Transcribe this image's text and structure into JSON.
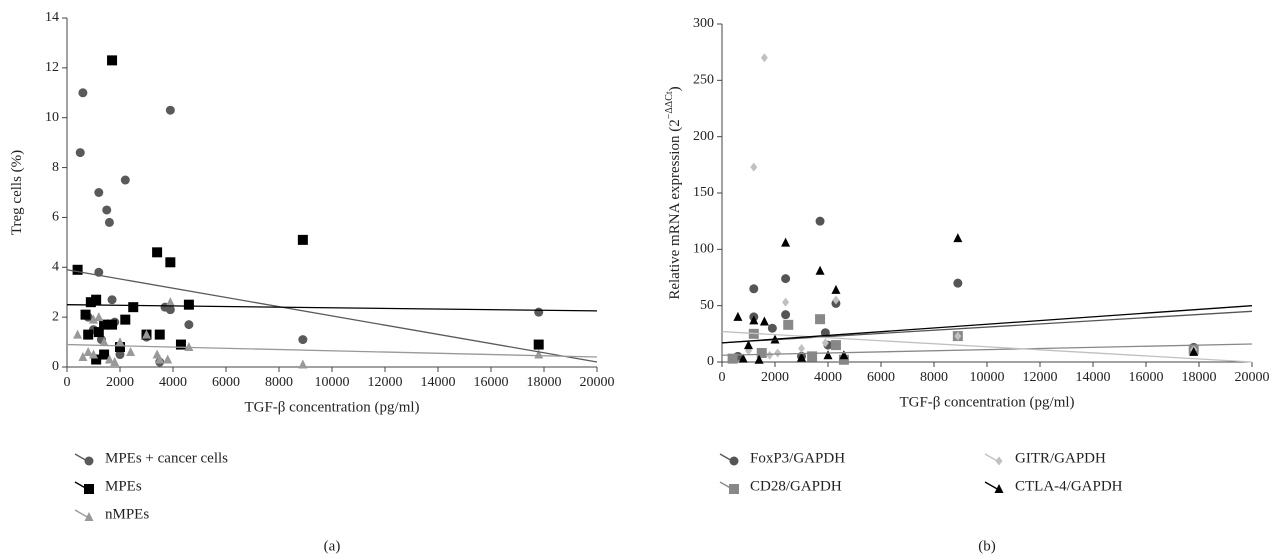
{
  "chart_data": [
    {
      "type": "scatter",
      "caption": "(a)",
      "xlabel": "TGF-β concentration (pg/ml)",
      "ylabel": "Treg cells (%)",
      "xlim": [
        0,
        20000
      ],
      "xticks": [
        0,
        2000,
        4000,
        6000,
        8000,
        10000,
        12000,
        14000,
        16000,
        18000,
        20000
      ],
      "ylim": [
        0,
        14
      ],
      "yticks": [
        0,
        2,
        4,
        6,
        8,
        10,
        12,
        14
      ],
      "series": [
        {
          "name": "MPEs + cancer cells",
          "color": "#5a5a5a",
          "marker": "circle",
          "x": [
            500,
            600,
            1200,
            1200,
            1500,
            1600,
            2200,
            3900,
            1700,
            3700,
            3900,
            4600,
            3000,
            2000,
            1000,
            800,
            1300,
            3500,
            8900,
            17800,
            4300,
            1800
          ],
          "y": [
            8.6,
            11,
            7,
            3.8,
            6.3,
            5.8,
            7.5,
            10.3,
            2.7,
            2.4,
            2.3,
            1.7,
            1.2,
            0.5,
            1.5,
            2,
            1.1,
            0.2,
            1.1,
            2.2,
            0.9,
            1.8
          ],
          "trend": {
            "x": [
              0,
              20000
            ],
            "y": [
              3.9,
              0.2
            ]
          }
        },
        {
          "name": "MPEs",
          "color": "#000000",
          "marker": "square",
          "x": [
            400,
            700,
            900,
            1100,
            800,
            1200,
            1400,
            1700,
            1700,
            2200,
            2500,
            3400,
            3900,
            3500,
            4600,
            4300,
            1100,
            1400,
            2000,
            3000,
            8900,
            17800
          ],
          "y": [
            3.9,
            2.1,
            2.6,
            2.7,
            1.3,
            1.4,
            1.7,
            1.7,
            12.3,
            1.9,
            2.4,
            4.6,
            4.2,
            1.3,
            2.5,
            0.9,
            0.3,
            0.5,
            0.8,
            1.3,
            5.1,
            0.9
          ],
          "trend": {
            "x": [
              0,
              20000
            ],
            "y": [
              2.5,
              2.25
            ]
          }
        },
        {
          "name": "nMPEs",
          "color": "#999999",
          "marker": "triangle",
          "x": [
            400,
            600,
            800,
            1000,
            1200,
            1400,
            1600,
            1800,
            2000,
            2400,
            3000,
            3400,
            3500,
            3800,
            3900,
            4600,
            8900,
            17800,
            1000
          ],
          "y": [
            1.3,
            0.4,
            0.6,
            1.9,
            2.0,
            1.0,
            0.3,
            0.2,
            1.0,
            0.6,
            1.3,
            0.5,
            0.3,
            0.3,
            2.6,
            0.8,
            0.1,
            0.5,
            0.5
          ],
          "trend": {
            "x": [
              0,
              20000
            ],
            "y": [
              0.9,
              0.4
            ]
          }
        }
      ]
    },
    {
      "type": "scatter",
      "caption": "(b)",
      "xlabel": "TGF-β concentration (pg/ml)",
      "ylabel": "Relative mRNA expression (2",
      "ylabel_sup": "−ΔΔCt",
      "ylabel_end": ")",
      "xlim": [
        0,
        20000
      ],
      "xticks": [
        0,
        2000,
        4000,
        6000,
        8000,
        10000,
        12000,
        14000,
        16000,
        18000,
        20000
      ],
      "ylim": [
        0,
        300
      ],
      "yticks": [
        0,
        50,
        100,
        150,
        200,
        250,
        300
      ],
      "series": [
        {
          "name": "FoxP3/GAPDH",
          "color": "#555555",
          "marker": "circle",
          "x": [
            1200,
            1200,
            2400,
            2400,
            1900,
            3700,
            3900,
            4300,
            8900,
            17800,
            3000,
            600,
            4000
          ],
          "y": [
            65,
            40,
            74,
            42,
            30,
            125,
            26,
            52,
            70,
            13,
            5,
            5,
            15
          ],
          "trend": {
            "x": [
              0,
              20000
            ],
            "y": [
              17,
              45
            ]
          }
        },
        {
          "name": "CD28/GAPDH",
          "color": "#888888",
          "marker": "square",
          "x": [
            1200,
            3700,
            2500,
            4300,
            8900,
            17800,
            400,
            1500,
            3400,
            4600
          ],
          "y": [
            25,
            38,
            33,
            15,
            23,
            11,
            3,
            8,
            5,
            2
          ],
          "trend": {
            "x": [
              0,
              20000
            ],
            "y": [
              6,
              16
            ]
          }
        },
        {
          "name": "GITR/GAPDH",
          "color": "#c0c0c0",
          "marker": "diamond",
          "x": [
            1200,
            1600,
            2400,
            4300,
            3900,
            8900,
            17800,
            1000,
            2100,
            3000,
            1800
          ],
          "y": [
            173,
            270,
            53,
            55,
            17,
            23,
            11,
            10,
            8,
            12,
            6
          ],
          "trend": {
            "x": [
              0,
              20000
            ],
            "y": [
              27,
              0
            ]
          }
        },
        {
          "name": "CTLA-4/GAPDH",
          "color": "#000000",
          "marker": "triangle",
          "x": [
            600,
            1200,
            1600,
            1000,
            2400,
            3700,
            4300,
            8900,
            17800,
            2000,
            3000,
            4000,
            4600,
            800,
            1400
          ],
          "y": [
            40,
            37,
            36,
            15,
            106,
            81,
            64,
            110,
            9,
            20,
            4,
            6,
            6,
            3,
            2
          ],
          "trend": {
            "x": [
              0,
              20000
            ],
            "y": [
              17,
              50
            ]
          }
        }
      ]
    }
  ]
}
